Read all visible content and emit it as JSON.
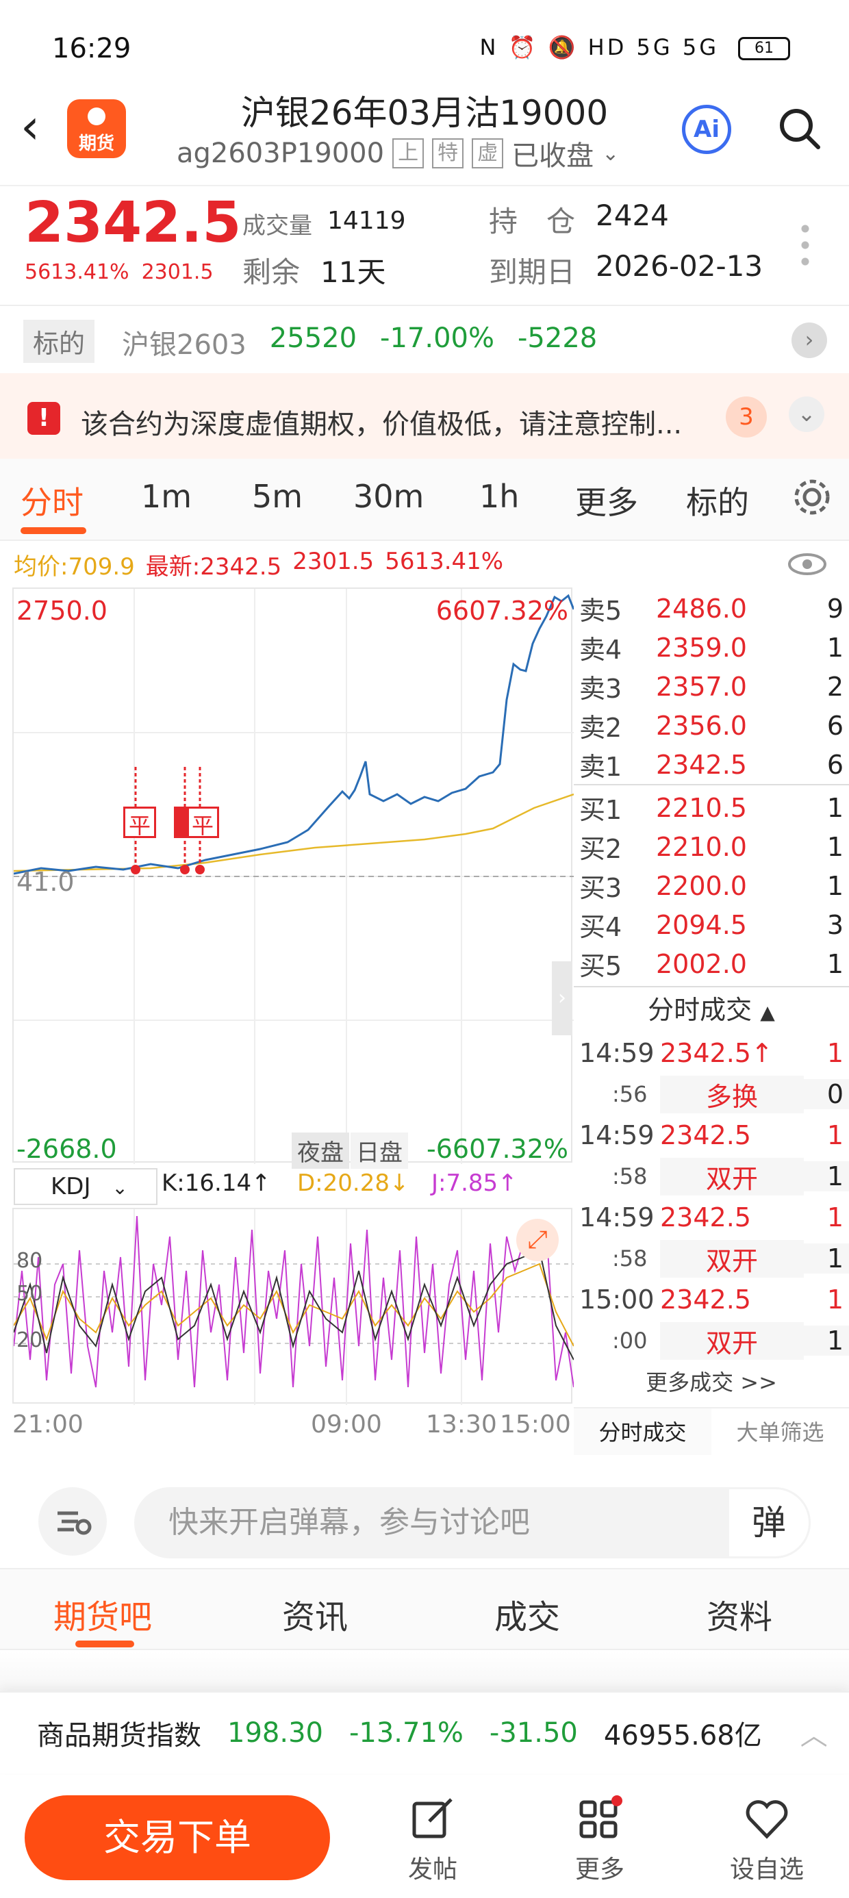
{
  "status_bar": {
    "time": "16:29",
    "icons": "N ⏰ 🔕 HD 5G 5G",
    "battery": "61"
  },
  "header": {
    "title": "沪银26年03月沽19000",
    "code": "ag2603P19000",
    "tags": [
      "上",
      "特",
      "虚"
    ],
    "state": "已收盘",
    "logo_text": "期货",
    "ai": "Ai"
  },
  "quote": {
    "price": "2342.5",
    "change_pct": "5613.41%",
    "change_val": "2301.5",
    "volume_label": "成交量",
    "volume": "14119",
    "remain_label": "剩余",
    "remain": "11天",
    "oi_label": "持　仓",
    "oi": "2424",
    "expiry_label": "到期日",
    "expiry": "2026-02-13"
  },
  "underlying": {
    "badge": "标的",
    "name": "沪银2603",
    "price": "25520",
    "pct": "-17.00%",
    "chg": "-5228"
  },
  "warning": {
    "text": "该合约为深度虚值期权，价值极低，请注意控制...",
    "count": "3"
  },
  "tabs": [
    "分时",
    "1m",
    "5m",
    "30m",
    "1h",
    "更多",
    "标的"
  ],
  "info": {
    "avg": "均价:709.9",
    "latest": "最新:2342.5",
    "v1": "2301.5",
    "v2": "5613.41%"
  },
  "chart": {
    "y_top": "2750.0",
    "pct_top": "6607.32%",
    "y_mid": "41.0",
    "y_bottom": "-2668.0",
    "pct_bottom": "-6607.32%",
    "night": "夜盘",
    "day": "日盘",
    "markers": [
      "平",
      "平",
      "平"
    ]
  },
  "kdj": {
    "name": "KDJ",
    "k": "K:16.14↑",
    "d": "D:20.28↓",
    "j": "J:7.85↑",
    "levels": [
      "80",
      "50",
      "20"
    ],
    "colors": {
      "k": "#333333",
      "d": "#e6a817",
      "j": "#c63bd1"
    }
  },
  "time_axis": [
    "21:00",
    "09:00",
    "13:30",
    "15:00"
  ],
  "orderbook": {
    "asks": [
      {
        "label": "卖5",
        "price": "2486.0",
        "qty": "9"
      },
      {
        "label": "卖4",
        "price": "2359.0",
        "qty": "1"
      },
      {
        "label": "卖3",
        "price": "2357.0",
        "qty": "2"
      },
      {
        "label": "卖2",
        "price": "2356.0",
        "qty": "6"
      },
      {
        "label": "卖1",
        "price": "2342.5",
        "qty": "6"
      }
    ],
    "bids": [
      {
        "label": "买1",
        "price": "2210.5",
        "qty": "1"
      },
      {
        "label": "买2",
        "price": "2210.0",
        "qty": "1"
      },
      {
        "label": "买3",
        "price": "2200.0",
        "qty": "1"
      },
      {
        "label": "买4",
        "price": "2094.5",
        "qty": "3"
      },
      {
        "label": "买5",
        "price": "2002.0",
        "qty": "1"
      }
    ]
  },
  "ticks": {
    "title": "分时成交",
    "rows": [
      {
        "time": "14:59",
        "sec": ":56",
        "price": "2342.5↑",
        "qty": "1",
        "type": "多换",
        "tqty": "0"
      },
      {
        "time": "14:59",
        "sec": ":58",
        "price": "2342.5",
        "qty": "1",
        "type": "双开",
        "tqty": "1"
      },
      {
        "time": "14:59",
        "sec": ":58",
        "price": "2342.5",
        "qty": "1",
        "type": "双开",
        "tqty": "1"
      },
      {
        "time": "15:00",
        "sec": ":00",
        "price": "2342.5",
        "qty": "1",
        "type": "双开",
        "tqty": "1"
      }
    ],
    "more": "更多成交 >>",
    "footer": [
      "分时成交",
      "大单筛选"
    ]
  },
  "comment": {
    "placeholder": "快来开启弹幕，参与讨论吧",
    "danmu": "弹"
  },
  "bottom_tabs": [
    "期货吧",
    "资讯",
    "成交",
    "资料"
  ],
  "index": {
    "name": "商品期货指数",
    "value": "198.30",
    "pct": "-13.71%",
    "chg": "-31.50",
    "amount": "46955.68亿"
  },
  "bottom_nav": {
    "trade": "交易下单",
    "items": [
      "发帖",
      "更多",
      "设自选"
    ]
  },
  "colors": {
    "accent": "#ff5a1f",
    "up": "#e5262b",
    "down": "#1f9d3a",
    "price_line": "#2a6db5",
    "avg_line": "#e6b92a"
  }
}
